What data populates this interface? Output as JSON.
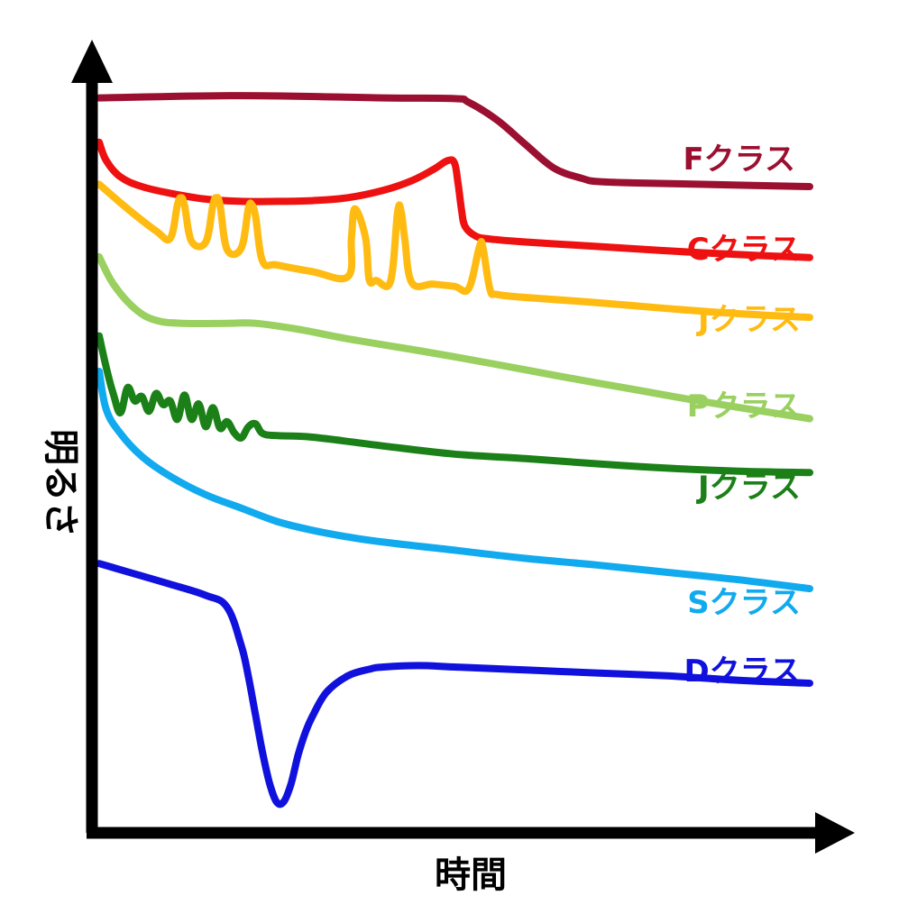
{
  "chart_data": {
    "type": "line",
    "title": "",
    "xlabel": "時間",
    "ylabel": "明るさ",
    "xlim": [
      0,
      100
    ],
    "ylim": [
      0,
      100
    ],
    "grid": false,
    "legend": "inline-right",
    "axes_color": "#000000",
    "series": [
      {
        "name": "Fクラス",
        "color": "#9b1030",
        "x": [
          0,
          20,
          40,
          50,
          52,
          56,
          60,
          64,
          68,
          70,
          75,
          85,
          100
        ],
        "y": [
          97,
          97.3,
          97,
          96.9,
          96.4,
          94,
          90.7,
          87.5,
          86.1,
          85.7,
          85.5,
          85.3,
          85
        ]
      },
      {
        "name": "Cクラス",
        "color": "#ee1111",
        "x": [
          0,
          1,
          3,
          6,
          10,
          15,
          20,
          25,
          30,
          35,
          40,
          44,
          47,
          49,
          50,
          50.5,
          51,
          51.5,
          53,
          55,
          60,
          65,
          70,
          80,
          90,
          100
        ],
        "y": [
          91,
          88.5,
          86.3,
          85,
          84.1,
          83.3,
          83,
          83,
          83.1,
          83.5,
          84.5,
          85.8,
          87.3,
          88.5,
          88.2,
          85.5,
          81.8,
          79.6,
          78.3,
          77.9,
          77.5,
          77.2,
          76.9,
          76.3,
          75.8,
          75.4
        ]
      },
      {
        "name": "Jクラス",
        "color": "#ffbb11",
        "x": [
          0,
          4,
          8,
          10,
          11,
          11.5,
          12,
          13,
          15,
          16,
          16.5,
          17,
          18,
          20,
          21,
          21.5,
          22,
          23,
          25,
          30,
          35,
          35.5,
          36,
          37.5,
          38,
          39,
          41,
          42,
          42.5,
          43,
          44,
          47,
          50,
          52,
          53.5,
          54,
          55,
          56,
          60,
          70,
          80,
          90,
          100
        ],
        "y": [
          85.3,
          82,
          79,
          78,
          82.5,
          83.5,
          82.5,
          77.6,
          77.5,
          82.5,
          83.5,
          82.5,
          76.5,
          76.7,
          82.1,
          82.5,
          81,
          74.9,
          74.4,
          73.5,
          72.8,
          78,
          82,
          78,
          72.4,
          72.3,
          72.2,
          81.6,
          81.6,
          78,
          72,
          71.8,
          71.5,
          71.2,
          76.8,
          76.8,
          71.1,
          70.4,
          70,
          69.3,
          68.5,
          67.8,
          67.3
        ]
      },
      {
        "name": "Pクラス",
        "color": "#99d060",
        "x": [
          0,
          2,
          5,
          8,
          12,
          18,
          22,
          28,
          35,
          45,
          55,
          65,
          75,
          85,
          100
        ],
        "y": [
          75.5,
          71.8,
          68.5,
          66.9,
          66.5,
          66.5,
          66.5,
          65.7,
          64.4,
          62.8,
          61.1,
          59.3,
          57.6,
          55.9,
          53.6
        ]
      },
      {
        "name": "Jクラス",
        "color": "#1a8017",
        "x": [
          0,
          1,
          2,
          3,
          4,
          5,
          6,
          7,
          8,
          9,
          10,
          11,
          12,
          13,
          14,
          15,
          16,
          17,
          18,
          19,
          20,
          21,
          22,
          23,
          25,
          30,
          40,
          50,
          60,
          70,
          80,
          90,
          100
        ],
        "y": [
          64.8,
          60.5,
          56.9,
          54.4,
          57.8,
          56,
          56.6,
          54.6,
          57,
          55.5,
          56,
          53.5,
          56.8,
          53.5,
          55.6,
          52.5,
          55.1,
          52.3,
          53.2,
          51.7,
          51,
          52.5,
          52.9,
          51.6,
          51.3,
          51.1,
          49.9,
          48.8,
          48.2,
          47.5,
          46.9,
          46.5,
          46.3
        ]
      },
      {
        "name": "Sクラス",
        "color": "#11aaee",
        "x": [
          0,
          1,
          3,
          6,
          10,
          15,
          20,
          25,
          30,
          35,
          40,
          50,
          60,
          70,
          80,
          90,
          100
        ],
        "y": [
          60,
          54.8,
          51.6,
          48.5,
          45.8,
          43.3,
          41.5,
          39.7,
          38.5,
          37.6,
          36.9,
          35.8,
          34.7,
          33.8,
          32.8,
          31.8,
          30.6
        ]
      },
      {
        "name": "Dクラス",
        "color": "#1111dd",
        "x": [
          0,
          5,
          10,
          15,
          18,
          20,
          21,
          22,
          23,
          24,
          25,
          26,
          27,
          28,
          29,
          30,
          32,
          35,
          38,
          40,
          45,
          50,
          60,
          70,
          80,
          90,
          100
        ],
        "y": [
          34,
          32.6,
          31.2,
          29.7,
          28.1,
          22.9,
          18.7,
          13.5,
          8.4,
          4.2,
          1.7,
          1.8,
          4.2,
          8.1,
          11.1,
          13.3,
          16.6,
          18.8,
          19.7,
          20,
          20.2,
          20,
          19.6,
          19.2,
          18.8,
          18.2,
          17.8
        ]
      }
    ],
    "label_colors": [
      "#9b1030",
      "#ee1111",
      "#ffbb11",
      "#99d060",
      "#1a8017",
      "#11aaee",
      "#1111dd"
    ]
  }
}
